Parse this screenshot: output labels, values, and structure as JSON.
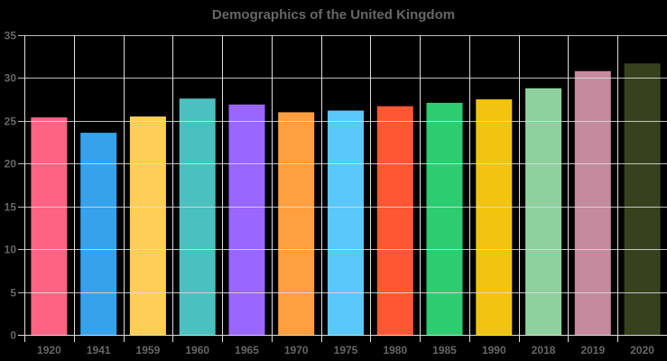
{
  "chart_data": {
    "type": "bar",
    "title": "Demographics of the United Kingdom",
    "xlabel": "",
    "ylabel": "",
    "categories": [
      "1920",
      "1941",
      "1959",
      "1960",
      "1965",
      "1970",
      "1975",
      "1980",
      "1985",
      "1990",
      "2018",
      "2019",
      "2020"
    ],
    "values": [
      25.4,
      23.6,
      25.5,
      27.6,
      26.9,
      26.0,
      26.2,
      26.7,
      27.1,
      27.5,
      28.8,
      30.8,
      31.7
    ],
    "colors": [
      "#FF6384",
      "#36A2EB",
      "#FFCE56",
      "#4BC0C0",
      "#9966FF",
      "#FF9F40",
      "#5AC8FA",
      "#FF5733",
      "#2ECC71",
      "#F1C40F",
      "#8FD19E",
      "#C48A9E",
      "#36421E"
    ],
    "ylim": [
      0,
      35
    ],
    "yticks": [
      0,
      5,
      10,
      15,
      20,
      25,
      30,
      35
    ],
    "grid": true,
    "legend": "none",
    "background": "#000000",
    "grid_color": "#dddddd",
    "label_color": "#666666"
  }
}
